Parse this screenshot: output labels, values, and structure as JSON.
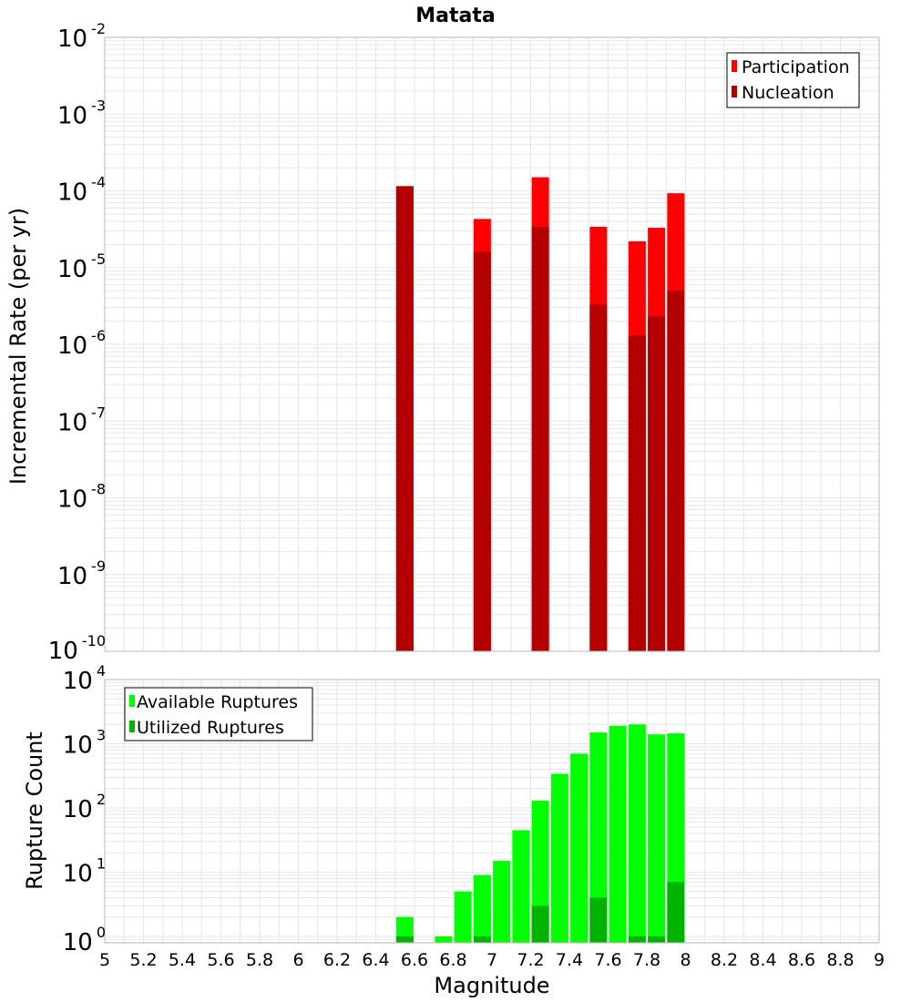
{
  "chart_data": [
    {
      "type": "bar",
      "title": "Matata",
      "ylabel": "Incremental Rate (per yr)",
      "y_scale": "log",
      "ylim_exponents": [
        -10,
        -2
      ],
      "y_ticks": [
        {
          "base": "10",
          "exp": "-2"
        },
        {
          "base": "10",
          "exp": "-3"
        },
        {
          "base": "10",
          "exp": "-4"
        },
        {
          "base": "10",
          "exp": "-5"
        },
        {
          "base": "10",
          "exp": "-6"
        },
        {
          "base": "10",
          "exp": "-7"
        },
        {
          "base": "10",
          "exp": "-8"
        },
        {
          "base": "10",
          "exp": "-9"
        },
        {
          "base": "10",
          "exp": "-10"
        }
      ],
      "xlim": [
        5,
        9
      ],
      "grid": true,
      "legend_position": "top-right",
      "series": [
        {
          "name": "Participation",
          "color": "#ff0000",
          "x": [
            6.55,
            6.95,
            7.25,
            7.55,
            7.75,
            7.85,
            7.95
          ],
          "values": [
            0.000115,
            4.3e-05,
            0.00015,
            3.4e-05,
            2.2e-05,
            3.3e-05,
            9.3e-05
          ]
        },
        {
          "name": "Nucleation",
          "color": "#b30000",
          "x": [
            6.55,
            6.95,
            7.25,
            7.55,
            7.75,
            7.85,
            7.95
          ],
          "values": [
            0.000115,
            1.6e-05,
            3.4e-05,
            3.3e-06,
            1.3e-06,
            2.3e-06,
            5e-06
          ]
        }
      ]
    },
    {
      "type": "bar",
      "ylabel": "Rupture Count",
      "xlabel": "Magnitude",
      "y_scale": "log",
      "ylim_exponents": [
        -0.1,
        4
      ],
      "y_ticks": [
        {
          "base": "10",
          "exp": "4"
        },
        {
          "base": "10",
          "exp": "3"
        },
        {
          "base": "10",
          "exp": "2"
        },
        {
          "base": "10",
          "exp": "1"
        },
        {
          "base": "10",
          "exp": "0"
        }
      ],
      "xlim": [
        5,
        9
      ],
      "x_ticks": [
        "5",
        "5.2",
        "5.4",
        "5.6",
        "5.8",
        "6",
        "6.2",
        "6.4",
        "6.6",
        "6.8",
        "7",
        "7.2",
        "7.4",
        "7.6",
        "7.8",
        "8",
        "8.2",
        "8.4",
        "8.6",
        "8.8",
        "9"
      ],
      "grid": true,
      "legend_position": "top-left",
      "series": [
        {
          "name": "Available Ruptures",
          "color": "#00ff00",
          "x": [
            6.55,
            6.75,
            6.85,
            6.95,
            7.05,
            7.15,
            7.25,
            7.35,
            7.45,
            7.55,
            7.65,
            7.75,
            7.85,
            7.95
          ],
          "values": [
            2,
            1,
            5,
            9,
            15,
            45,
            130,
            340,
            700,
            1500,
            1900,
            2000,
            1400,
            1450
          ]
        },
        {
          "name": "Utilized Ruptures",
          "color": "#00b300",
          "x": [
            6.55,
            6.95,
            7.25,
            7.55,
            7.75,
            7.85,
            7.95
          ],
          "values": [
            1,
            1,
            3,
            4,
            1,
            1,
            7
          ]
        }
      ]
    }
  ]
}
